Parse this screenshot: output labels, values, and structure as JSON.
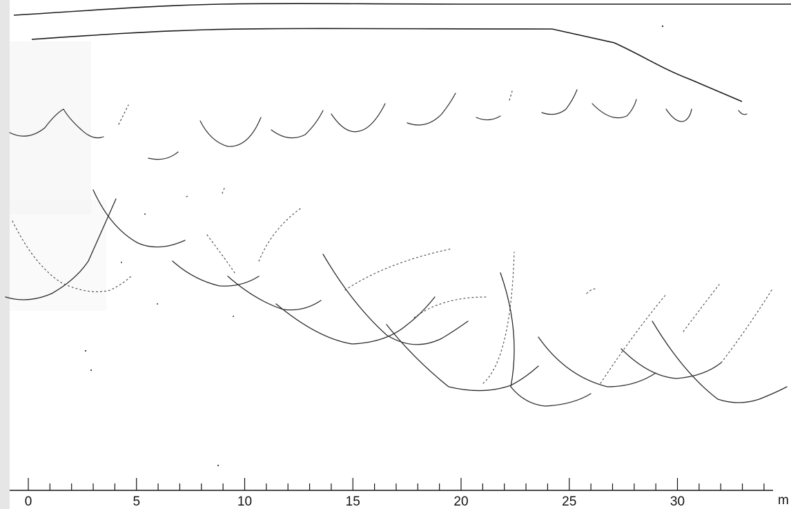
{
  "scale_bar": {
    "unit": "m",
    "min": 0,
    "max": 34,
    "labeled_ticks": [
      "0",
      "5",
      "10",
      "15",
      "20",
      "25",
      "30"
    ]
  },
  "colors": {
    "ink": "#1a1a1a",
    "paper": "#ffffff",
    "paper_shade": "#f3f3f3"
  }
}
